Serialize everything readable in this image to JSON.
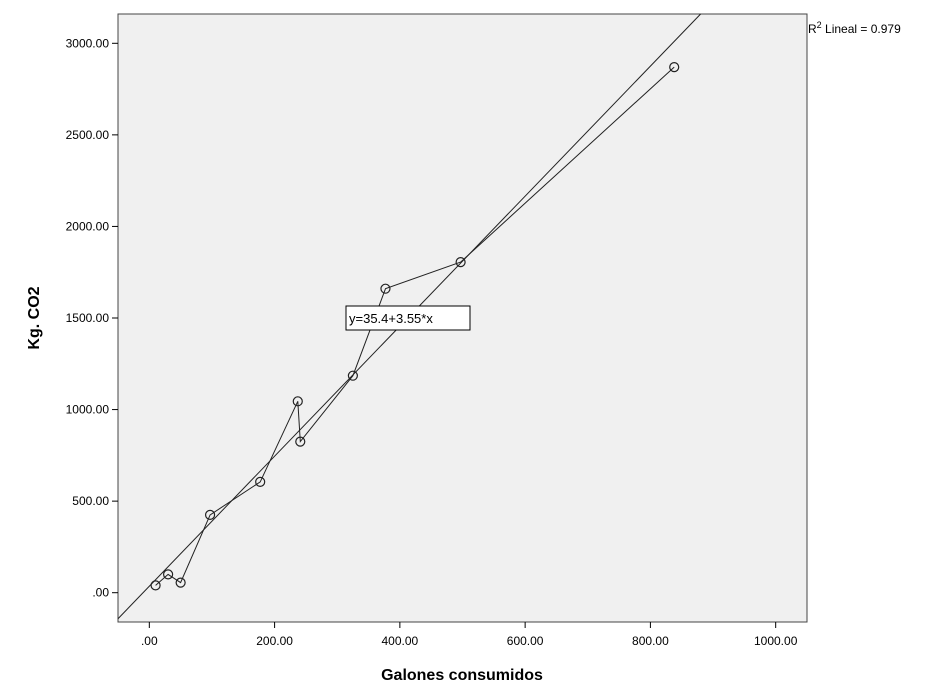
{
  "chart_data": {
    "type": "scatter",
    "xlabel": "Galones consumidos",
    "ylabel": "Kg. CO2",
    "xlim": [
      -50,
      1050
    ],
    "ylim": [
      -160,
      3160
    ],
    "x_ticks": [
      0,
      200,
      400,
      600,
      800,
      1000
    ],
    "x_tick_labels": [
      ".00",
      "200.00",
      "400.00",
      "600.00",
      "800.00",
      "1000.00"
    ],
    "y_ticks": [
      0,
      500,
      1000,
      1500,
      2000,
      2500,
      3000
    ],
    "y_tick_labels": [
      ".00",
      "500.00",
      "1000.00",
      "1500.00",
      "2000.00",
      "2500.00",
      "3000.00"
    ],
    "plot_background": "#f0f0f0",
    "series": [
      {
        "marker": "open-circle",
        "connected": true,
        "points": [
          {
            "x": 10,
            "y": 40
          },
          {
            "x": 30,
            "y": 100
          },
          {
            "x": 50,
            "y": 55
          },
          {
            "x": 97,
            "y": 425
          },
          {
            "x": 177,
            "y": 605
          },
          {
            "x": 237,
            "y": 1045
          },
          {
            "x": 241,
            "y": 825
          },
          {
            "x": 325,
            "y": 1185
          },
          {
            "x": 377,
            "y": 1660
          },
          {
            "x": 497,
            "y": 1805
          },
          {
            "x": 838,
            "y": 2870
          }
        ]
      }
    ],
    "fit_line": {
      "intercept": 35.4,
      "slope": 3.55,
      "label": "y=35.4+3.55*x"
    },
    "r2": {
      "prefix": "R",
      "superscript": "2",
      "text": " Lineal = 0.979"
    }
  }
}
